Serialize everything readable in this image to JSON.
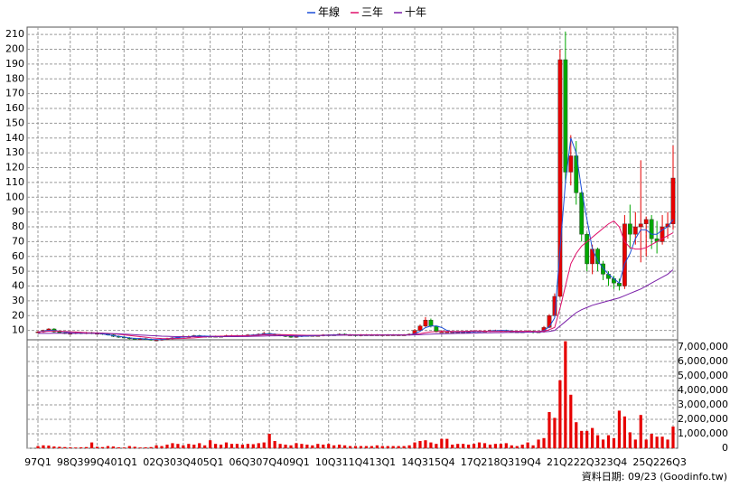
{
  "chart_data": [
    {
      "type": "candlestick",
      "categories": [
        "97Q1",
        null,
        null,
        null,
        null,
        null,
        "98Q3",
        null,
        null,
        null,
        null,
        "99Q4",
        null,
        null,
        null,
        null,
        "01Q1",
        null,
        null,
        null,
        null,
        null,
        "02Q3",
        null,
        null,
        null,
        null,
        "03Q4",
        null,
        null,
        null,
        null,
        "05Q1",
        null,
        null,
        null,
        null,
        null,
        "06Q3",
        null,
        null,
        null,
        null,
        "07Q4",
        null,
        null,
        null,
        null,
        "09Q1",
        null,
        null,
        null,
        null,
        null,
        "10Q3",
        null,
        null,
        null,
        null,
        "11Q4",
        null,
        null,
        null,
        null,
        "13Q1",
        null,
        null,
        null,
        null,
        null,
        "14Q3",
        null,
        null,
        null,
        null,
        "15Q4",
        null,
        null,
        null,
        null,
        null,
        "17Q2",
        null,
        null,
        null,
        null,
        "18Q3",
        null,
        null,
        null,
        null,
        "19Q4",
        null,
        null,
        null,
        null,
        null,
        "21Q2",
        null,
        null,
        null,
        null,
        "22Q3",
        null,
        null,
        null,
        null,
        "23Q4",
        null,
        null,
        null,
        null,
        null,
        "25Q2",
        null,
        null,
        null,
        null,
        "26Q3"
      ],
      "open": [
        8.5,
        9,
        10,
        11,
        9,
        8.5,
        8,
        8,
        8.5,
        8,
        8.5,
        8,
        8,
        7.5,
        7,
        6,
        5.5,
        5,
        4.5,
        4,
        4.5,
        4,
        3.5,
        3.5,
        4,
        4.5,
        5,
        5.5,
        6,
        6,
        6.5,
        6,
        6,
        6,
        6,
        6,
        6.5,
        6.5,
        6.5,
        6.5,
        7,
        7,
        7.5,
        8,
        7.5,
        7,
        6.5,
        6,
        5.5,
        6,
        6.5,
        6.5,
        6.5,
        6.5,
        7,
        7,
        7,
        7.5,
        7,
        7,
        6.5,
        7,
        7,
        7,
        7,
        7,
        7,
        7,
        7,
        7,
        7.5,
        10,
        13,
        17,
        13,
        9,
        9,
        9,
        9,
        9,
        9,
        9,
        9.5,
        9.5,
        9.5,
        10,
        10,
        10,
        9.5,
        9,
        9,
        9,
        9.5,
        9,
        9,
        12,
        20,
        33,
        193,
        117,
        128,
        103,
        75,
        55,
        65,
        55,
        48,
        45,
        42,
        40,
        82,
        75,
        80,
        82,
        85,
        72,
        70,
        80,
        82
      ],
      "high": [
        9.5,
        10.5,
        11.5,
        11.5,
        9.5,
        9,
        8.5,
        9,
        9,
        9,
        9,
        8.5,
        8.5,
        8,
        7.5,
        6.5,
        6,
        5.5,
        5,
        5,
        5,
        4.5,
        4,
        4.5,
        5,
        5.5,
        6,
        6.5,
        6.5,
        7,
        7,
        6.5,
        6.5,
        6.5,
        6.5,
        7,
        7,
        7,
        7,
        7.5,
        7.5,
        8,
        9,
        8.5,
        8,
        7.5,
        7,
        6.5,
        6.5,
        7,
        7,
        7,
        7,
        7.5,
        7.5,
        7.5,
        8,
        8,
        7.5,
        7.5,
        7.5,
        7.5,
        7.5,
        7.5,
        7.5,
        7.5,
        7.5,
        7.5,
        7.5,
        8,
        11,
        14,
        19,
        18,
        13.5,
        10,
        9.5,
        9.5,
        9.5,
        9.5,
        9.5,
        10,
        10,
        10,
        10.5,
        10.5,
        10.5,
        10.5,
        10,
        9.5,
        9.5,
        10,
        10,
        9.5,
        13,
        21,
        35,
        200,
        212,
        142,
        138,
        104,
        76,
        68,
        66,
        57,
        50,
        47,
        45,
        88,
        95,
        90,
        125,
        87,
        88,
        84,
        88,
        90,
        135
      ],
      "low": [
        8,
        8.5,
        9.5,
        8.5,
        8,
        7.5,
        7.5,
        7.5,
        7.5,
        7.5,
        7.5,
        7.5,
        7,
        6.5,
        5.5,
        5,
        4.5,
        4,
        3.5,
        3.5,
        3.5,
        3,
        3,
        3,
        3.5,
        4,
        4.5,
        5,
        5.5,
        5.5,
        5.5,
        5.5,
        5.5,
        5.5,
        5.5,
        6,
        6,
        6,
        6,
        6,
        6.5,
        6.5,
        7,
        7,
        6.5,
        6,
        5.5,
        5,
        5,
        5.5,
        6,
        6,
        6,
        6,
        6.5,
        6.5,
        6.5,
        6.5,
        6.5,
        6,
        6,
        6.5,
        6.5,
        6.5,
        6.5,
        6.5,
        6.5,
        6.5,
        6.5,
        6.5,
        7,
        9.5,
        12,
        12,
        8.5,
        8.5,
        8.5,
        8.5,
        8.5,
        8.5,
        8.5,
        8.5,
        9,
        9,
        9,
        9.5,
        9.5,
        9,
        8.5,
        8.5,
        8.5,
        8.5,
        8,
        8.5,
        8.5,
        11.5,
        19,
        32,
        110,
        108,
        95,
        70,
        50,
        48,
        50,
        44,
        40,
        38,
        37,
        38,
        65,
        68,
        56,
        60,
        65,
        62,
        68,
        72,
        78
      ],
      "close": [
        9,
        10,
        11,
        9,
        8.5,
        8,
        8,
        8.5,
        8,
        8.5,
        8,
        8,
        7.5,
        7,
        6,
        5.5,
        5,
        4.5,
        4,
        4.5,
        4,
        3.5,
        3.5,
        4,
        4.5,
        5,
        5.5,
        6,
        6,
        6.5,
        6,
        6,
        6,
        6,
        6,
        6.5,
        6.5,
        6.5,
        6.5,
        7,
        7,
        7.5,
        8,
        7.5,
        7,
        6.5,
        6,
        5.5,
        6,
        6.5,
        6.5,
        6.5,
        6.5,
        7,
        7,
        7,
        7.5,
        7,
        7,
        6.5,
        7,
        7,
        7,
        7,
        7,
        7,
        7,
        7,
        7,
        7.5,
        10,
        13,
        17,
        13,
        9,
        9,
        9,
        9,
        9,
        9,
        9,
        9.5,
        9.5,
        9.5,
        10,
        10,
        10,
        9.5,
        9,
        9,
        9,
        9.5,
        9,
        9,
        12,
        20,
        33,
        193,
        117,
        128,
        103,
        75,
        55,
        65,
        55,
        48,
        45,
        42,
        40,
        82,
        75,
        80,
        82,
        85,
        72,
        70,
        80,
        82,
        113
      ],
      "up_color": "#e60000",
      "down_color": "#00a800",
      "series": [
        {
          "name": "年線",
          "color": "#1c4fd8",
          "values": [
            9,
            9.5,
            10,
            10,
            9.5,
            9,
            8.5,
            8.2,
            8.2,
            8.2,
            8.2,
            8.1,
            7.6,
            7,
            6.5,
            6,
            5.5,
            5,
            4.6,
            4.5,
            4.2,
            4,
            3.8,
            3.8,
            4.3,
            4.8,
            5.2,
            5.5,
            5.8,
            6.1,
            6.2,
            6.2,
            6,
            6,
            6.1,
            6.2,
            6.4,
            6.5,
            6.5,
            6.6,
            6.9,
            7.2,
            7.5,
            7.7,
            7.5,
            7.1,
            6.8,
            6.3,
            6,
            6,
            6.2,
            6.4,
            6.6,
            6.8,
            6.9,
            7,
            7.1,
            7.1,
            7.1,
            7,
            6.9,
            6.9,
            7,
            7,
            7,
            7,
            7,
            7,
            7,
            7.1,
            7.8,
            9.4,
            11.9,
            13,
            13,
            12,
            10,
            9,
            9,
            9,
            9,
            9.1,
            9.2,
            9.4,
            9.6,
            9.8,
            9.9,
            9.9,
            9.6,
            9.4,
            9.1,
            9.1,
            9.1,
            9.1,
            9.9,
            12.5,
            18.5,
            65,
            110,
            140,
            130,
            105,
            85,
            65,
            57,
            52,
            48,
            45,
            42,
            55,
            62,
            72,
            78,
            78,
            75,
            75,
            78,
            80,
            85
          ]
        },
        {
          "name": "三年",
          "color": "#e0106a",
          "values": [
            9,
            9.2,
            9.5,
            9.6,
            9.5,
            9.3,
            9.1,
            8.9,
            8.7,
            8.5,
            8.4,
            8.3,
            8.2,
            8,
            7.7,
            7.4,
            7,
            6.6,
            6.2,
            5.8,
            5.4,
            5,
            4.7,
            4.5,
            4.4,
            4.4,
            4.5,
            4.6,
            4.8,
            5,
            5.3,
            5.6,
            5.9,
            6,
            6.1,
            6.2,
            6.3,
            6.3,
            6.4,
            6.5,
            6.6,
            6.8,
            7,
            7.1,
            7.2,
            7.2,
            7.1,
            7,
            6.9,
            6.8,
            6.7,
            6.7,
            6.7,
            6.7,
            6.8,
            6.8,
            6.9,
            7,
            7,
            7,
            7,
            7,
            7,
            7,
            7,
            7,
            7,
            7,
            7,
            7,
            7.3,
            7.8,
            8.5,
            9,
            9.2,
            9.3,
            9.3,
            9.3,
            9.3,
            9.4,
            9.5,
            9.6,
            9.6,
            9.5,
            9.3,
            9.3,
            9.3,
            9.3,
            9.4,
            9.4,
            9.4,
            9.4,
            9.3,
            9.3,
            9.5,
            10.5,
            12,
            25,
            40,
            55,
            62,
            67,
            70,
            73,
            76,
            79,
            82,
            84,
            80,
            70,
            66,
            65,
            65,
            66,
            68,
            70,
            72,
            74,
            76
          ]
        },
        {
          "name": "十年",
          "color": "#7a1fa8",
          "values": [
            8,
            8,
            8,
            8.1,
            8.1,
            8.1,
            8.1,
            8.1,
            8.1,
            8.1,
            8.1,
            8,
            8,
            7.9,
            7.8,
            7.7,
            7.5,
            7.3,
            7.1,
            6.9,
            6.7,
            6.5,
            6.3,
            6.1,
            6,
            5.9,
            5.8,
            5.8,
            5.8,
            5.8,
            5.8,
            5.8,
            5.8,
            5.8,
            5.8,
            5.8,
            5.8,
            5.8,
            5.9,
            5.9,
            6,
            6.1,
            6.2,
            6.3,
            6.3,
            6.4,
            6.4,
            6.4,
            6.5,
            6.5,
            6.5,
            6.6,
            6.6,
            6.6,
            6.7,
            6.7,
            6.7,
            6.8,
            6.8,
            6.8,
            6.8,
            6.8,
            6.8,
            6.8,
            6.9,
            6.9,
            6.9,
            6.9,
            6.9,
            6.9,
            7,
            7.1,
            7.3,
            7.5,
            7.6,
            7.7,
            7.8,
            7.9,
            8,
            8,
            8.1,
            8.2,
            8.3,
            8.4,
            8.4,
            8.5,
            8.5,
            8.6,
            8.6,
            8.7,
            8.7,
            8.8,
            8.8,
            8.9,
            9,
            9.3,
            10,
            13,
            16,
            19,
            22,
            24,
            25.5,
            27,
            28,
            29,
            30,
            31,
            32,
            33.5,
            35,
            36.5,
            38,
            40,
            42,
            44,
            46,
            48,
            51
          ]
        }
      ],
      "ylim": [
        0,
        215
      ],
      "yticks": [
        10,
        20,
        30,
        40,
        50,
        60,
        70,
        80,
        90,
        100,
        110,
        120,
        130,
        140,
        150,
        160,
        170,
        180,
        190,
        200,
        210
      ],
      "grid": true,
      "legend": "top"
    },
    {
      "type": "bar",
      "values": [
        150000,
        200000,
        180000,
        120000,
        100000,
        80000,
        60000,
        50000,
        60000,
        80000,
        400000,
        100000,
        80000,
        150000,
        120000,
        60000,
        50000,
        150000,
        100000,
        50000,
        60000,
        80000,
        200000,
        150000,
        250000,
        350000,
        300000,
        200000,
        300000,
        250000,
        350000,
        200000,
        550000,
        300000,
        250000,
        400000,
        300000,
        300000,
        250000,
        300000,
        280000,
        350000,
        400000,
        1000000,
        500000,
        300000,
        250000,
        200000,
        350000,
        300000,
        250000,
        200000,
        300000,
        250000,
        300000,
        200000,
        250000,
        200000,
        150000,
        150000,
        150000,
        150000,
        150000,
        200000,
        150000,
        150000,
        150000,
        150000,
        150000,
        200000,
        400000,
        500000,
        550000,
        400000,
        300000,
        650000,
        650000,
        250000,
        300000,
        300000,
        250000,
        300000,
        400000,
        350000,
        250000,
        300000,
        300000,
        350000,
        200000,
        150000,
        250000,
        400000,
        200000,
        600000,
        700000,
        2500000,
        2100000,
        4700000,
        7400000,
        3700000,
        1800000,
        1200000,
        1200000,
        1400000,
        900000,
        600000,
        900000,
        700000,
        2600000,
        2200000,
        1100000,
        600000,
        2300000,
        600000,
        1000000,
        800000,
        800000,
        600000,
        1500000
      ],
      "color": "#e60000",
      "ylim": [
        0,
        7500000
      ],
      "yticks": [
        0,
        {
          "value": 1000000,
          "label": "1,000,000"
        },
        {
          "value": 2000000,
          "label": "2,000,000"
        },
        {
          "value": 3000000,
          "label": "3,000,000"
        },
        {
          "value": 4000000,
          "label": "4,000,000"
        },
        {
          "value": 5000000,
          "label": "5,000,000"
        },
        {
          "value": 6000000,
          "label": "6,000,000"
        },
        {
          "value": 7000000,
          "label": "7,000,000"
        }
      ],
      "grid": true
    }
  ],
  "footer": "資料日期: 09/23 (Goodinfo.tw)"
}
